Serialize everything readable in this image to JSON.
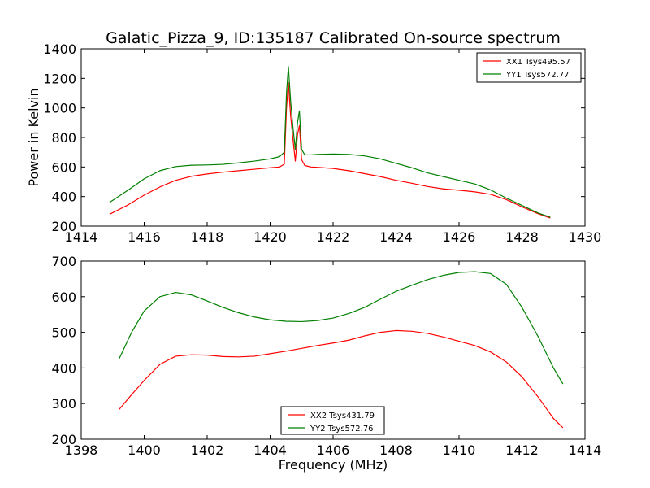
{
  "chart_data": [
    {
      "type": "line",
      "title": "Galatic_Pizza_9, ID:135187 Calibrated On-source spectrum",
      "xlabel": "",
      "ylabel": "Power in Kelvin",
      "xlim": [
        1414,
        1430
      ],
      "ylim": [
        200,
        1400
      ],
      "xticks": [
        1414,
        1416,
        1418,
        1420,
        1422,
        1424,
        1426,
        1428,
        1430
      ],
      "yticks": [
        200,
        400,
        600,
        800,
        1000,
        1200,
        1400
      ],
      "legend_position": "top-right",
      "series": [
        {
          "name": "XX1 Tsys495.57",
          "color": "#ff0000",
          "x": [
            1414.9,
            1415.5,
            1416.0,
            1416.5,
            1417.0,
            1417.5,
            1418.0,
            1418.5,
            1419.0,
            1419.5,
            1420.0,
            1420.3,
            1420.45,
            1420.52,
            1420.58,
            1420.65,
            1420.72,
            1420.8,
            1420.87,
            1420.93,
            1421.0,
            1421.1,
            1421.3,
            1421.5,
            1422.0,
            1422.5,
            1423.0,
            1423.5,
            1424.0,
            1424.5,
            1425.0,
            1425.5,
            1426.0,
            1426.5,
            1427.0,
            1427.5,
            1428.0,
            1428.5,
            1428.9
          ],
          "y": [
            280,
            345,
            410,
            465,
            510,
            537,
            553,
            565,
            575,
            585,
            595,
            600,
            620,
            1000,
            1170,
            950,
            800,
            640,
            820,
            880,
            650,
            610,
            600,
            598,
            590,
            575,
            555,
            535,
            510,
            490,
            468,
            452,
            443,
            432,
            415,
            380,
            330,
            285,
            255
          ]
        },
        {
          "name": "YY1 Tsys572.77",
          "color": "#008000",
          "x": [
            1414.9,
            1415.5,
            1416.0,
            1416.5,
            1417.0,
            1417.5,
            1418.0,
            1418.5,
            1419.0,
            1419.5,
            1420.0,
            1420.3,
            1420.45,
            1420.52,
            1420.58,
            1420.65,
            1420.72,
            1420.8,
            1420.87,
            1420.93,
            1421.0,
            1421.1,
            1421.3,
            1421.5,
            1422.0,
            1422.5,
            1423.0,
            1423.5,
            1424.0,
            1424.5,
            1425.0,
            1425.5,
            1426.0,
            1426.5,
            1427.0,
            1427.5,
            1428.0,
            1428.5,
            1428.9
          ],
          "y": [
            360,
            445,
            520,
            575,
            603,
            612,
            614,
            618,
            628,
            640,
            655,
            670,
            700,
            1100,
            1280,
            1050,
            880,
            720,
            900,
            980,
            720,
            682,
            682,
            685,
            688,
            685,
            675,
            655,
            625,
            595,
            560,
            535,
            510,
            485,
            445,
            390,
            340,
            290,
            260
          ]
        }
      ]
    },
    {
      "type": "line",
      "title": "",
      "xlabel": "Frequency (MHz)",
      "ylabel": "",
      "xlim": [
        1398,
        1414
      ],
      "ylim": [
        200,
        700
      ],
      "xticks": [
        1398,
        1400,
        1402,
        1404,
        1406,
        1408,
        1410,
        1412,
        1414
      ],
      "yticks": [
        200,
        300,
        400,
        500,
        600,
        700
      ],
      "legend_position": "bottom-center",
      "series": [
        {
          "name": "XX2 Tsys431.79",
          "color": "#ff0000",
          "x": [
            1399.2,
            1399.6,
            1400.0,
            1400.5,
            1401.0,
            1401.5,
            1402.0,
            1402.5,
            1403.0,
            1403.5,
            1404.0,
            1404.5,
            1405.0,
            1405.5,
            1406.0,
            1406.5,
            1407.0,
            1407.5,
            1408.0,
            1408.5,
            1409.0,
            1409.5,
            1410.0,
            1410.5,
            1411.0,
            1411.5,
            1412.0,
            1412.5,
            1413.0,
            1413.3
          ],
          "y": [
            283,
            325,
            365,
            410,
            433,
            437,
            436,
            432,
            431,
            433,
            440,
            447,
            455,
            463,
            470,
            478,
            490,
            500,
            505,
            503,
            497,
            487,
            475,
            463,
            445,
            417,
            375,
            320,
            258,
            232
          ]
        },
        {
          "name": "YY2 Tsys572.76",
          "color": "#008000",
          "x": [
            1399.2,
            1399.6,
            1400.0,
            1400.5,
            1401.0,
            1401.5,
            1402.0,
            1402.5,
            1403.0,
            1403.5,
            1404.0,
            1404.5,
            1405.0,
            1405.5,
            1406.0,
            1406.5,
            1407.0,
            1407.5,
            1408.0,
            1408.5,
            1409.0,
            1409.5,
            1410.0,
            1410.5,
            1411.0,
            1411.5,
            1412.0,
            1412.5,
            1413.0,
            1413.3
          ],
          "y": [
            425,
            500,
            560,
            600,
            612,
            605,
            588,
            570,
            555,
            543,
            535,
            531,
            530,
            533,
            540,
            553,
            570,
            593,
            615,
            632,
            648,
            660,
            668,
            670,
            665,
            635,
            570,
            490,
            400,
            355
          ]
        }
      ]
    }
  ]
}
